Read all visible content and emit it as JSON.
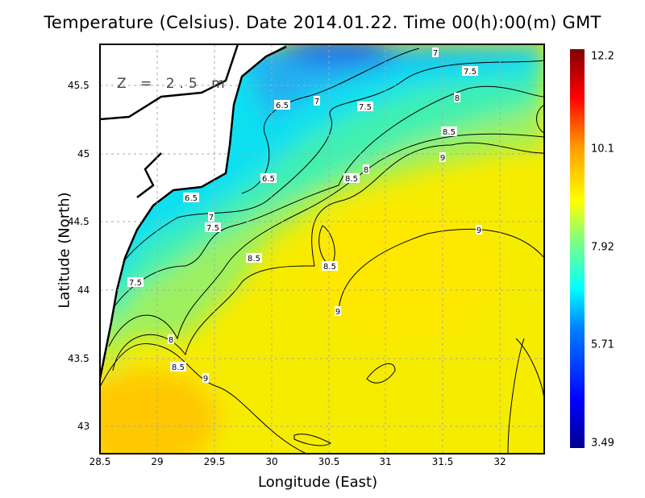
{
  "title": "Temperature (Celsius). Date 2014.01.22. Time 00(h):00(m)  GMT",
  "depth_label": "Z = 2.5 m",
  "x_axis": {
    "label": "Longitude (East)",
    "ticks": [
      "28.5",
      "29",
      "29.5",
      "30",
      "30.5",
      "31",
      "31.5",
      "32"
    ]
  },
  "y_axis": {
    "label": "Latitude (North)",
    "ticks": [
      "45.5",
      "45",
      "44.5",
      "44",
      "43.5",
      "43"
    ]
  },
  "colorbar": {
    "ticks": [
      "12.2",
      "10.1",
      "7.92",
      "5.71",
      "3.49"
    ],
    "min": 3.49,
    "max": 12.2,
    "colors": [
      "#00008f",
      "#0000ff",
      "#0080ff",
      "#00ffff",
      "#80ff80",
      "#ffff00",
      "#ff8000",
      "#ff0000",
      "#800000"
    ]
  },
  "contour_labels": [
    "7",
    "7.5",
    "6.5",
    "7",
    "7.5",
    "8",
    "8.5",
    "9",
    "6.5",
    "8",
    "8.5",
    "6.5",
    "7",
    "7.5",
    "9",
    "8.5",
    "8.5",
    "7.5",
    "9",
    "8",
    "8.5",
    "9"
  ],
  "chart_data": {
    "type": "heatmap",
    "title": "Temperature (Celsius). Date 2014.01.22. Time 00(h):00(m)  GMT",
    "xlabel": "Longitude (East)",
    "ylabel": "Latitude (North)",
    "xlim": [
      28.5,
      32.4
    ],
    "ylim": [
      42.8,
      45.8
    ],
    "contour_levels": [
      6.5,
      7,
      7.5,
      8,
      8.5,
      9
    ],
    "color_range": [
      3.49,
      12.2
    ]
  }
}
